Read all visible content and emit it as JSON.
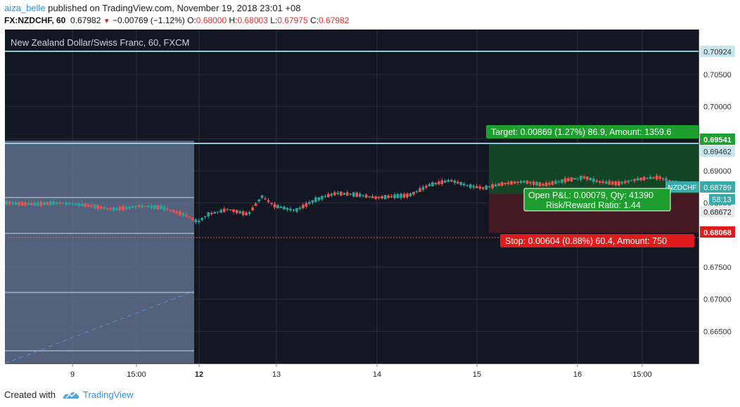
{
  "header": {
    "author": "aiza_belle",
    "published": " published on TradingView.com, November 19, 2018 23:01 +08",
    "symbol": "FX:NZDCHF, 60",
    "last": "0.67982",
    "change": "−0.00769 (−1.12%)",
    "open_label": "O:",
    "open": "0.68000",
    "high_label": "H:",
    "high": "0.68003",
    "low_label": "L:",
    "low": "0.67975",
    "close_label": "C:",
    "close": "0.67982"
  },
  "chart": {
    "legend": "New Zealand Dollar/Swiss Franc, 60, FXCM",
    "ticker_badge": "NZDCHF",
    "countdown": "58:13",
    "y_ticks": [
      "0.70500",
      "0.70000",
      "0.69500",
      "0.69000",
      "0.68500",
      "0.67500",
      "0.67000",
      "0.66500"
    ],
    "x_ticks": [
      {
        "label": "9",
        "bold": false
      },
      {
        "label": "15:00",
        "bold": false
      },
      {
        "label": "12",
        "bold": true
      },
      {
        "label": "13",
        "bold": false
      },
      {
        "label": "14",
        "bold": false
      },
      {
        "label": "15",
        "bold": false
      },
      {
        "label": "16",
        "bold": false
      },
      {
        "label": "15:00",
        "bold": false
      }
    ],
    "price_tags": [
      {
        "label": "0.70924",
        "style": "light"
      },
      {
        "label": "0.69541",
        "style": "green"
      },
      {
        "label": "0.69462",
        "style": "light"
      },
      {
        "label": "0.68789",
        "style": "teal"
      },
      {
        "label": "0.68672",
        "style": "light"
      },
      {
        "label": "0.68068",
        "style": "red"
      }
    ],
    "target_label": "Target: 0.00869 (1.27%) 86.9, Amount: 1359.6",
    "stop_label": "Stop: 0.00604 (0.88%) 60.4, Amount: 750",
    "pnl_line1": "Open P&L: 0.00079, Qty: 41390",
    "pnl_line2": "Risk/Reward Ratio: 1.44",
    "colors": {
      "up": "#26a69a",
      "down": "#ef5350",
      "background": "#131722",
      "level": "#8ecbdc"
    }
  },
  "footer": {
    "created": "Created with",
    "brand": "TradingView"
  },
  "chart_data": {
    "type": "candlestick",
    "title": "New Zealand Dollar/Swiss Franc, 60, FXCM",
    "symbol": "FX:NZDCHF",
    "timeframe": "60",
    "ylim": [
      0.66,
      0.712
    ],
    "x_ticks": [
      "9",
      "15:00",
      "12",
      "13",
      "14",
      "15",
      "16",
      "15:00"
    ],
    "price_path": [
      [
        0,
        0.685
      ],
      [
        0.04,
        0.6848
      ],
      [
        0.08,
        0.685
      ],
      [
        0.12,
        0.6846
      ],
      [
        0.16,
        0.684
      ],
      [
        0.2,
        0.6845
      ],
      [
        0.23,
        0.6843
      ],
      [
        0.255,
        0.6835
      ],
      [
        0.272,
        0.6828
      ],
      [
        0.285,
        0.682
      ],
      [
        0.3,
        0.6832
      ],
      [
        0.33,
        0.684
      ],
      [
        0.36,
        0.6832
      ],
      [
        0.38,
        0.686
      ],
      [
        0.4,
        0.6845
      ],
      [
        0.43,
        0.6838
      ],
      [
        0.46,
        0.6855
      ],
      [
        0.49,
        0.6865
      ],
      [
        0.52,
        0.6863
      ],
      [
        0.55,
        0.6858
      ],
      [
        0.6,
        0.6862
      ],
      [
        0.63,
        0.6878
      ],
      [
        0.66,
        0.6885
      ],
      [
        0.69,
        0.6876
      ],
      [
        0.71,
        0.6873
      ],
      [
        0.74,
        0.688
      ],
      [
        0.77,
        0.6883
      ],
      [
        0.8,
        0.6878
      ],
      [
        0.83,
        0.6885
      ],
      [
        0.86,
        0.689
      ],
      [
        0.88,
        0.6883
      ],
      [
        0.91,
        0.688
      ],
      [
        0.94,
        0.6887
      ],
      [
        0.97,
        0.689
      ],
      [
        1.0,
        0.688
      ]
    ],
    "levels": {
      "resistance_top": 0.70924,
      "target": 0.69541,
      "resistance": 0.69462,
      "last": 0.68789,
      "entry": 0.68672,
      "stop": 0.68068
    },
    "position": {
      "type": "long",
      "target": "0.00869 (1.27%) 86.9, Amount: 1359.6",
      "stop": "0.00604 (0.88%) 60.4, Amount: 750",
      "open_pnl": "0.00079",
      "qty": "41390",
      "risk_reward": "1.44"
    }
  }
}
